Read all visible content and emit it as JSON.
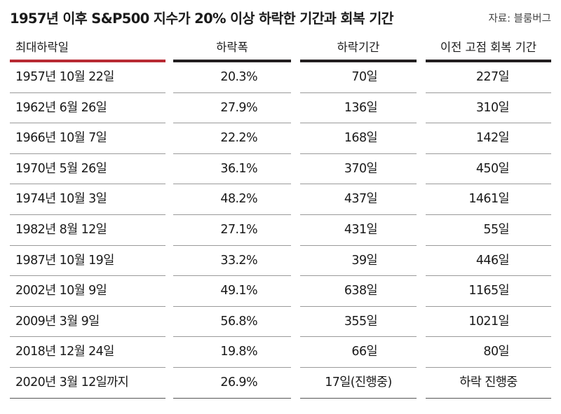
{
  "title": "1957년 이후 S&P500 지수가 20% 이상 하락한 기간과 회복 기간",
  "source": "자료: 블룸버그",
  "colors": {
    "accent": "#b82a33",
    "rule": "#231f20"
  },
  "chart_data": {
    "type": "table",
    "columns": [
      "최대하락일",
      "하락폭",
      "하락기간",
      "이전 고점 회복 기간"
    ],
    "rows": [
      [
        "1957년 10월 22일",
        "20.3%",
        "70일",
        "227일"
      ],
      [
        "1962년 6월 26일",
        "27.9%",
        "136일",
        "310일"
      ],
      [
        "1966년 10월 7일",
        "22.2%",
        "168일",
        "142일"
      ],
      [
        "1970년 5월 26일",
        "36.1%",
        "370일",
        "450일"
      ],
      [
        "1974년 10월 3일",
        "48.2%",
        "437일",
        "1461일"
      ],
      [
        "1982년 8월 12일",
        "27.1%",
        "431일",
        "55일"
      ],
      [
        "1987년 10월 19일",
        "33.2%",
        "39일",
        "446일"
      ],
      [
        "2002년 10월 9일",
        "49.1%",
        "638일",
        "1165일"
      ],
      [
        "2009년 3월 9일",
        "56.8%",
        "355일",
        "1021일"
      ],
      [
        "2018년 12월 24일",
        "19.8%",
        "66일",
        "80일"
      ],
      [
        "2020년 3월 12일까지",
        "26.9%",
        "17일(진행중)",
        "하락 진행중"
      ]
    ]
  }
}
